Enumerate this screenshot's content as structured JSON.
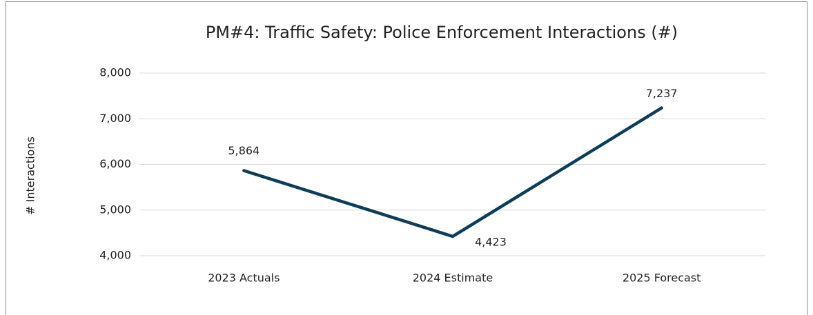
{
  "chart_data": {
    "type": "line",
    "title": "PM#4: Traffic Safety: Police Enforcement Interactions (#)",
    "y_label": "# Interactions",
    "categories": [
      "2023 Actuals",
      "2024 Estimate",
      "2025 Forecast"
    ],
    "series": [
      {
        "name": "Police Enforcement Interactions",
        "color": "#0d3d59",
        "values": [
          5864,
          4423,
          7237
        ],
        "value_labels": [
          "5,864",
          "4,423",
          "7,237"
        ]
      }
    ],
    "ylim": [
      4000,
      8000
    ],
    "yticks": [
      {
        "value": 4000,
        "label": "4,000"
      },
      {
        "value": 5000,
        "label": "5,000"
      },
      {
        "value": 6000,
        "label": "6,000"
      },
      {
        "value": 7000,
        "label": "7,000"
      },
      {
        "value": 8000,
        "label": "8,000"
      }
    ],
    "grid": true
  }
}
